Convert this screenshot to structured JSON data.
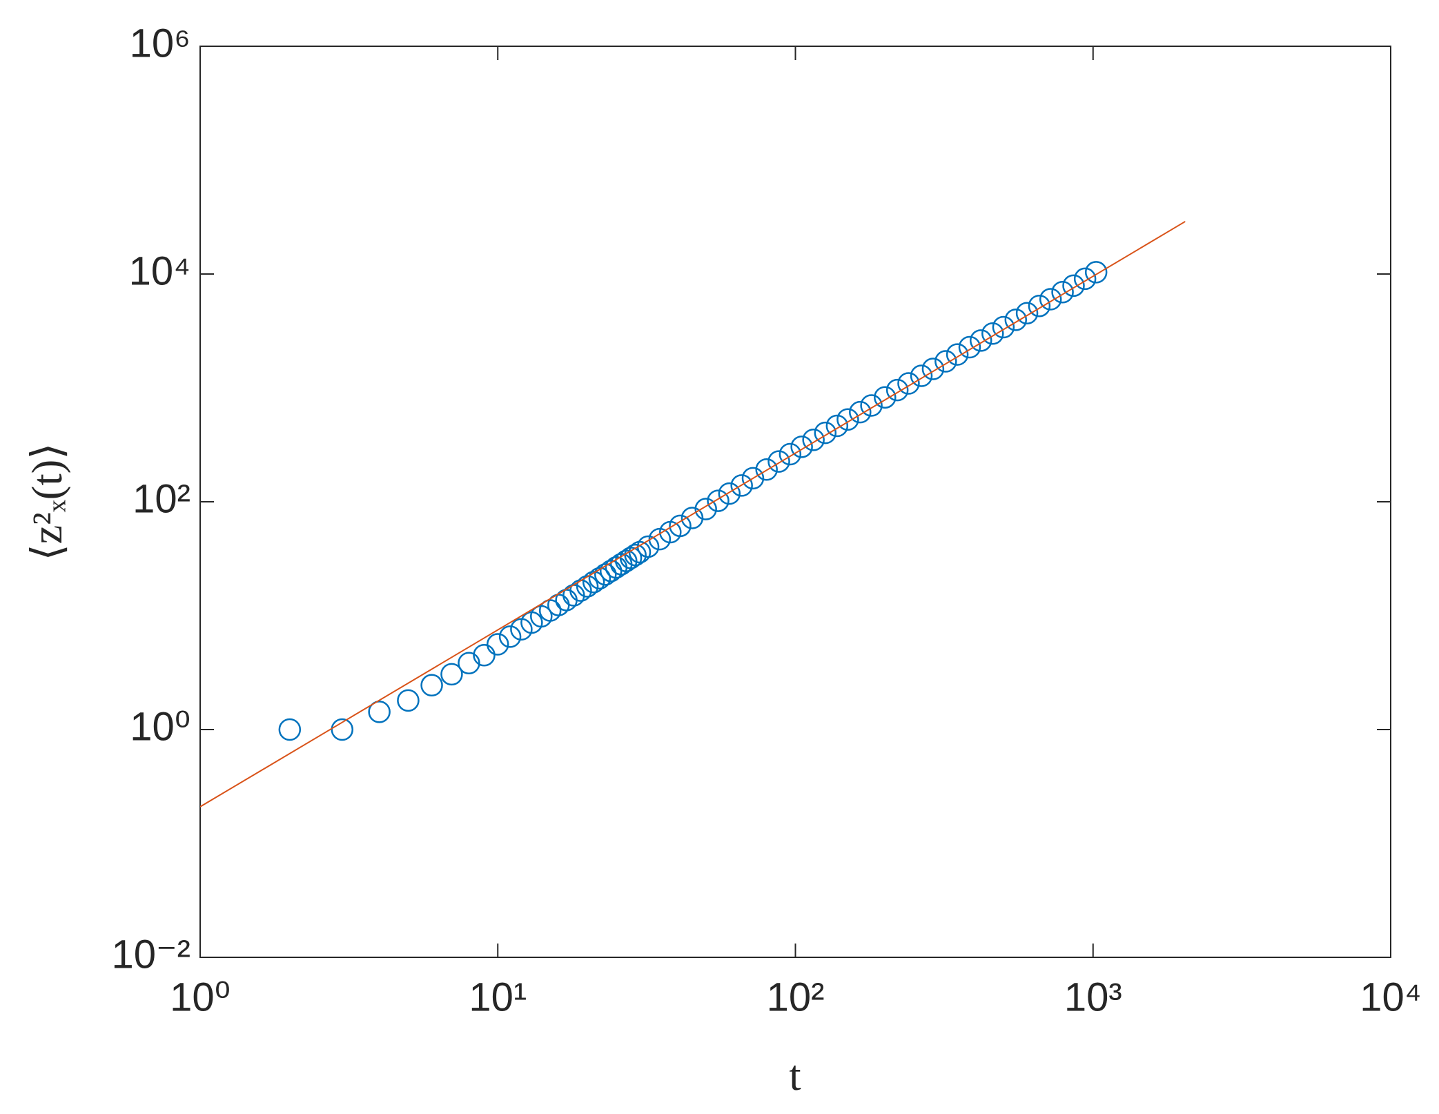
{
  "chart_data": {
    "type": "scatter",
    "xlabel": "t",
    "ylabel": "⟨z²ₓ(t)⟩",
    "xscale": "log",
    "yscale": "log",
    "grid": false,
    "xlim": [
      1,
      10000
    ],
    "ylim": [
      0.01,
      1000000
    ],
    "xticks": [
      {
        "value": 1,
        "label": "10⁰"
      },
      {
        "value": 10,
        "label": "10¹"
      },
      {
        "value": 100,
        "label": "10²"
      },
      {
        "value": 1000,
        "label": "10³"
      },
      {
        "value": 10000,
        "label": "10⁴"
      }
    ],
    "yticks": [
      {
        "value": 0.01,
        "label": "10⁻²"
      },
      {
        "value": 1,
        "label": "10⁰"
      },
      {
        "value": 100,
        "label": "10²"
      },
      {
        "value": 10000,
        "label": "10⁴"
      },
      {
        "value": 1000000,
        "label": "10⁶"
      }
    ],
    "series": [
      {
        "type": "scatter",
        "marker": "circle",
        "color": "#0072bd",
        "x": [
          2,
          3,
          4,
          5,
          6,
          7,
          8,
          9,
          10,
          11,
          12,
          13,
          14,
          15,
          16,
          17,
          18,
          19,
          20,
          21,
          22,
          23,
          24,
          25,
          26,
          27,
          28,
          29,
          30,
          32,
          35,
          38,
          41,
          45,
          50,
          55,
          60,
          66,
          72,
          80,
          88,
          96,
          105,
          115,
          126,
          138,
          150,
          165,
          180,
          200,
          220,
          240,
          265,
          290,
          320,
          350,
          385,
          420,
          460,
          500,
          550,
          600,
          660,
          720,
          790,
          860,
          940,
          1024
        ],
        "values": [
          1,
          1,
          1.43,
          1.8,
          2.45,
          3.06,
          3.83,
          4.5,
          5.6,
          6.54,
          7.59,
          8.69,
          9.86,
          11.1,
          12.4,
          13.7,
          15.1,
          16.6,
          18.1,
          19.7,
          21.3,
          23.0,
          24.7,
          26.5,
          28.3,
          30.2,
          32.1,
          34.1,
          36.1,
          40.4,
          47.0,
          54.1,
          61.5,
          72.1,
          86.3,
          102,
          118,
          139,
          161,
          192,
          226,
          262,
          304,
          350,
          403,
          464,
          528,
          612,
          701,
          826,
          957,
          1095,
          1276,
          1468,
          1710,
          1965,
          2277,
          2605,
          3000,
          3414,
          3959,
          4529,
          5248,
          6008,
          6934,
          7907,
          9078,
          10370
        ]
      },
      {
        "type": "line",
        "color": "#d95319",
        "x": [
          1,
          2040
        ],
        "values": [
          0.21,
          28900
        ]
      }
    ]
  }
}
